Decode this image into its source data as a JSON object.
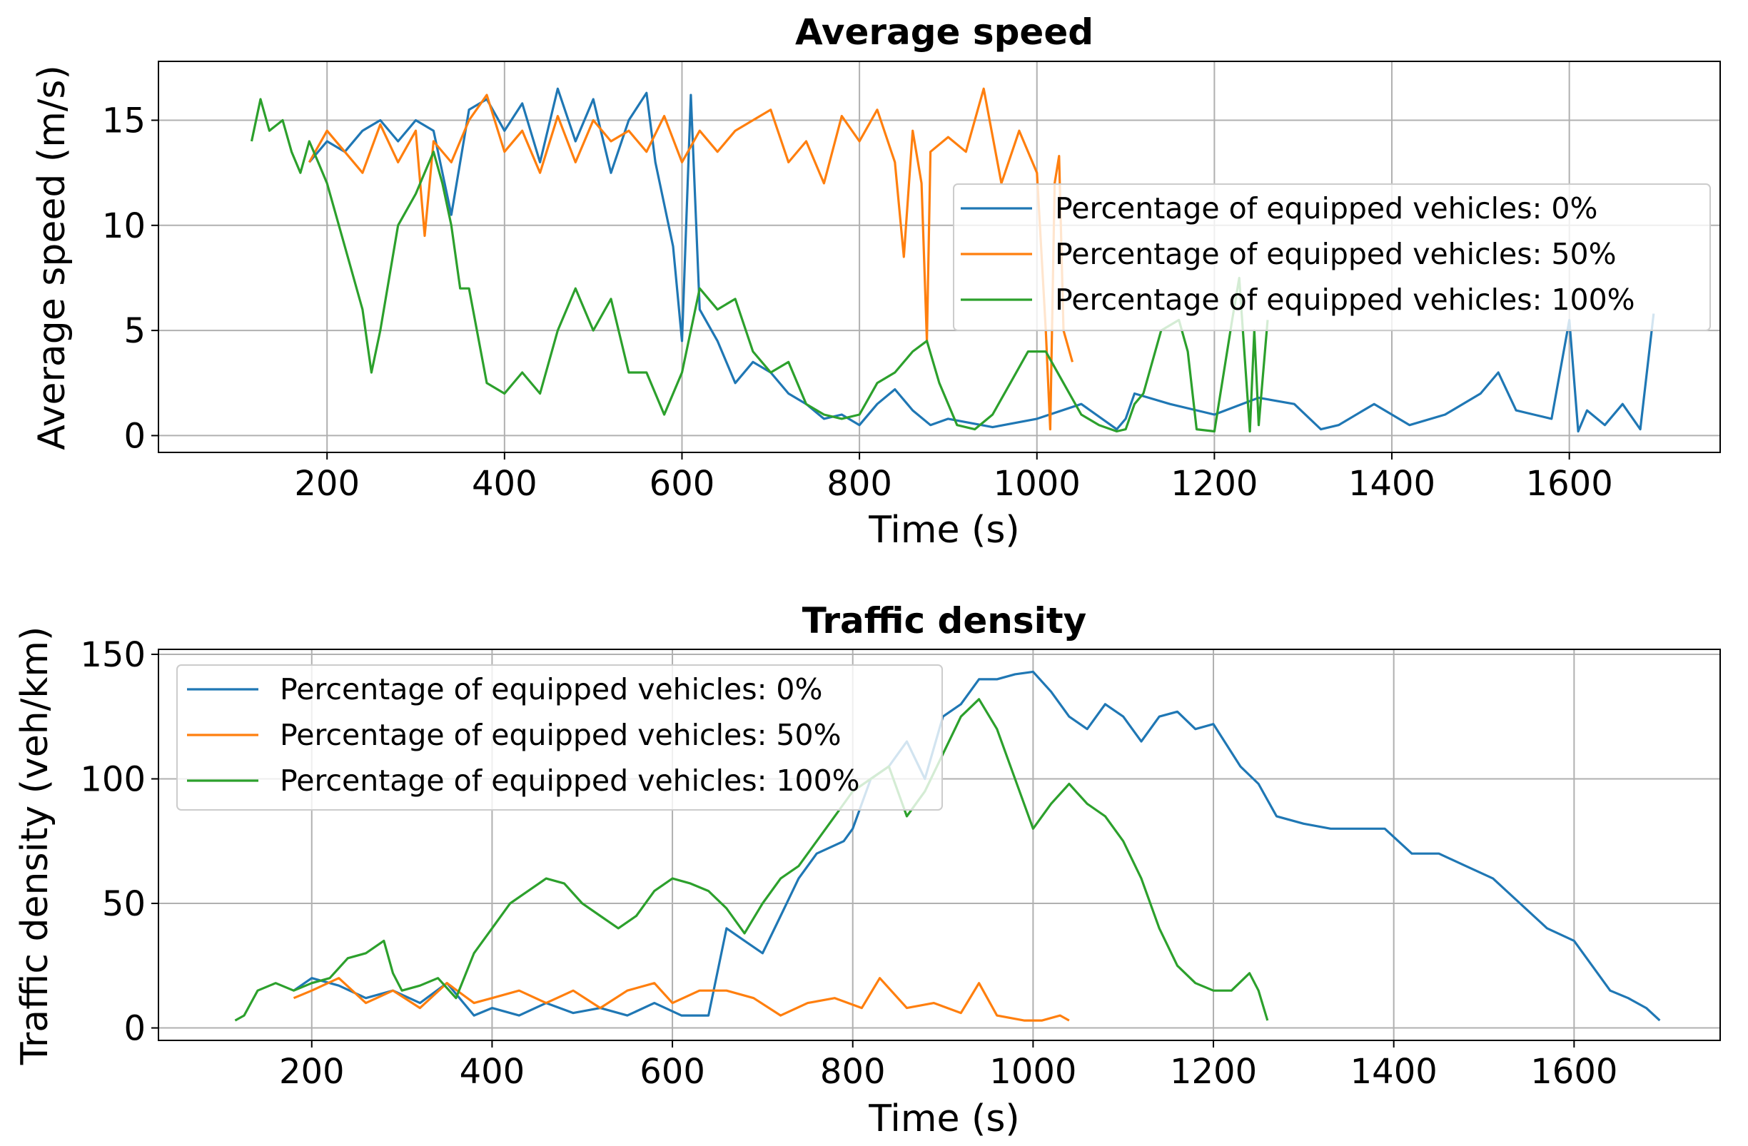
{
  "colors": {
    "series_0": "#1f77b4",
    "series_50": "#ff7f0e",
    "series_100": "#2ca02c",
    "grid": "#b0b0b0"
  },
  "chart_data": [
    {
      "type": "line",
      "title": "Average speed",
      "xlabel": "Time (s)",
      "ylabel": "Average speed (m/s)",
      "xlim": [
        10,
        1770
      ],
      "ylim": [
        -0.8,
        17.8
      ],
      "xticks": [
        200,
        400,
        600,
        800,
        1000,
        1200,
        1400,
        1600
      ],
      "yticks": [
        0,
        5,
        10,
        15
      ],
      "grid": true,
      "legend_position": "center-right",
      "series": [
        {
          "name": "Percentage of equipped vehicles: 0%",
          "x": [
            180,
            200,
            220,
            240,
            260,
            280,
            300,
            320,
            340,
            360,
            380,
            400,
            420,
            440,
            460,
            480,
            500,
            520,
            540,
            560,
            570,
            580,
            590,
            600,
            610,
            620,
            640,
            660,
            680,
            700,
            720,
            740,
            760,
            780,
            800,
            820,
            840,
            860,
            880,
            900,
            950,
            1000,
            1050,
            1090,
            1100,
            1110,
            1150,
            1200,
            1250,
            1290,
            1320,
            1340,
            1380,
            1420,
            1460,
            1500,
            1520,
            1540,
            1560,
            1580,
            1600,
            1610,
            1620,
            1640,
            1660,
            1680,
            1695
          ],
          "y": [
            13,
            14,
            13.5,
            14.5,
            15,
            14,
            15,
            14.5,
            10.5,
            15.5,
            16,
            14.5,
            15.8,
            13,
            16.5,
            14,
            16,
            12.5,
            15,
            16.3,
            13,
            11,
            9,
            4.5,
            16.2,
            6,
            4.5,
            2.5,
            3.5,
            3,
            2,
            1.5,
            0.8,
            1,
            0.5,
            1.5,
            2.2,
            1.2,
            0.5,
            0.8,
            0.4,
            0.8,
            1.5,
            0.3,
            0.8,
            2,
            1.5,
            1,
            1.8,
            1.5,
            0.3,
            0.5,
            1.5,
            0.5,
            1,
            2,
            3,
            1.2,
            1,
            0.8,
            5.5,
            0.2,
            1.2,
            0.5,
            1.5,
            0.3,
            5.8
          ]
        },
        {
          "name": "Percentage of equipped vehicles: 50%",
          "x": [
            180,
            200,
            220,
            240,
            260,
            280,
            300,
            310,
            320,
            340,
            360,
            380,
            400,
            420,
            440,
            460,
            480,
            500,
            520,
            540,
            560,
            580,
            600,
            620,
            640,
            660,
            680,
            700,
            720,
            740,
            760,
            780,
            800,
            820,
            840,
            850,
            860,
            870,
            876,
            880,
            900,
            920,
            940,
            960,
            980,
            1000,
            1010,
            1015,
            1020,
            1025,
            1030,
            1040
          ],
          "y": [
            13,
            14.5,
            13.5,
            12.5,
            14.8,
            13,
            14.5,
            9.5,
            14,
            13,
            15,
            16.2,
            13.5,
            14.5,
            12.5,
            15.2,
            13,
            15,
            14,
            14.5,
            13.5,
            15.2,
            13,
            14.5,
            13.5,
            14.5,
            15,
            15.5,
            13,
            14,
            12,
            15.2,
            14,
            15.5,
            13,
            8.5,
            14.5,
            12,
            4.5,
            13.5,
            14.2,
            13.5,
            16.5,
            12,
            14.5,
            12.5,
            5,
            0.3,
            12,
            13.3,
            5,
            3.5
          ]
        },
        {
          "name": "Percentage of equipped vehicles: 100%",
          "x": [
            115,
            125,
            135,
            150,
            160,
            170,
            180,
            190,
            200,
            220,
            240,
            250,
            260,
            280,
            300,
            320,
            330,
            340,
            350,
            360,
            380,
            400,
            420,
            440,
            460,
            480,
            500,
            520,
            540,
            560,
            580,
            600,
            620,
            640,
            660,
            680,
            700,
            720,
            740,
            760,
            780,
            800,
            820,
            840,
            860,
            876,
            890,
            910,
            930,
            950,
            970,
            990,
            1010,
            1030,
            1050,
            1070,
            1090,
            1100,
            1110,
            1120,
            1140,
            1160,
            1170,
            1180,
            1200,
            1220,
            1228,
            1240,
            1245,
            1250,
            1260
          ],
          "y": [
            14,
            16,
            14.5,
            15,
            13.5,
            12.5,
            14,
            13,
            12,
            9,
            6,
            3,
            5,
            10,
            11.5,
            13.5,
            12,
            10,
            7,
            7,
            2.5,
            2,
            3,
            2,
            5,
            7,
            5,
            6.5,
            3,
            3,
            1,
            3,
            7,
            6,
            6.5,
            4,
            3,
            3.5,
            1.5,
            1,
            0.8,
            1,
            2.5,
            3,
            4,
            4.5,
            2.5,
            0.5,
            0.3,
            1,
            2.5,
            4,
            4,
            2.5,
            1,
            0.5,
            0.2,
            0.3,
            1.5,
            2,
            5,
            5.5,
            4,
            0.3,
            0.2,
            5.5,
            7.5,
            0.2,
            5,
            0.5,
            5.5
          ]
        }
      ]
    },
    {
      "type": "line",
      "title": "Traffic density",
      "xlabel": "Time (s)",
      "ylabel": "Traffic density (veh/km)",
      "xlim": [
        30,
        1762
      ],
      "ylim": [
        -5,
        152
      ],
      "xticks": [
        200,
        400,
        600,
        800,
        1000,
        1200,
        1400,
        1600
      ],
      "yticks": [
        0,
        50,
        100,
        150
      ],
      "grid": true,
      "legend_position": "top-left",
      "series": [
        {
          "name": "Percentage of equipped vehicles: 0%",
          "x": [
            180,
            200,
            230,
            260,
            290,
            320,
            350,
            380,
            400,
            430,
            460,
            490,
            520,
            550,
            580,
            610,
            640,
            660,
            680,
            700,
            720,
            740,
            760,
            790,
            800,
            820,
            840,
            860,
            880,
            900,
            920,
            940,
            960,
            980,
            1000,
            1020,
            1040,
            1060,
            1080,
            1100,
            1120,
            1140,
            1160,
            1180,
            1200,
            1230,
            1250,
            1270,
            1300,
            1330,
            1360,
            1390,
            1420,
            1450,
            1480,
            1510,
            1540,
            1570,
            1600,
            1620,
            1640,
            1660,
            1680,
            1695
          ],
          "y": [
            15,
            20,
            17,
            12,
            15,
            10,
            18,
            5,
            8,
            5,
            10,
            6,
            8,
            5,
            10,
            5,
            5,
            40,
            35,
            30,
            45,
            60,
            70,
            75,
            80,
            100,
            105,
            115,
            100,
            125,
            130,
            140,
            140,
            142,
            143,
            135,
            125,
            120,
            130,
            125,
            115,
            125,
            127,
            120,
            122,
            105,
            98,
            85,
            82,
            80,
            80,
            80,
            70,
            70,
            65,
            60,
            50,
            40,
            35,
            25,
            15,
            12,
            8,
            3
          ]
        },
        {
          "name": "Percentage of equipped vehicles: 50%",
          "x": [
            180,
            200,
            230,
            260,
            290,
            320,
            350,
            380,
            400,
            430,
            460,
            490,
            520,
            550,
            580,
            600,
            630,
            660,
            690,
            720,
            750,
            780,
            810,
            830,
            860,
            890,
            920,
            940,
            960,
            990,
            1010,
            1030,
            1040
          ],
          "y": [
            12,
            15,
            20,
            10,
            15,
            8,
            18,
            10,
            12,
            15,
            10,
            15,
            8,
            15,
            18,
            10,
            15,
            15,
            12,
            5,
            10,
            12,
            8,
            20,
            8,
            10,
            6,
            18,
            5,
            3,
            3,
            5,
            3
          ]
        },
        {
          "name": "Percentage of equipped vehicles: 100%",
          "x": [
            115,
            125,
            140,
            160,
            180,
            200,
            220,
            240,
            260,
            280,
            290,
            300,
            320,
            340,
            360,
            380,
            400,
            420,
            440,
            460,
            480,
            500,
            520,
            540,
            560,
            580,
            600,
            620,
            640,
            660,
            680,
            700,
            720,
            740,
            760,
            780,
            800,
            820,
            840,
            860,
            880,
            900,
            920,
            940,
            960,
            980,
            1000,
            1020,
            1040,
            1060,
            1080,
            1100,
            1120,
            1140,
            1160,
            1180,
            1200,
            1220,
            1240,
            1250,
            1260
          ],
          "y": [
            3,
            5,
            15,
            18,
            15,
            18,
            20,
            28,
            30,
            35,
            22,
            15,
            17,
            20,
            12,
            30,
            40,
            50,
            55,
            60,
            58,
            50,
            45,
            40,
            45,
            55,
            60,
            58,
            55,
            48,
            38,
            50,
            60,
            65,
            75,
            85,
            95,
            100,
            105,
            85,
            95,
            110,
            125,
            132,
            120,
            100,
            80,
            90,
            98,
            90,
            85,
            75,
            60,
            40,
            25,
            18,
            15,
            15,
            22,
            15,
            3
          ]
        }
      ]
    }
  ]
}
